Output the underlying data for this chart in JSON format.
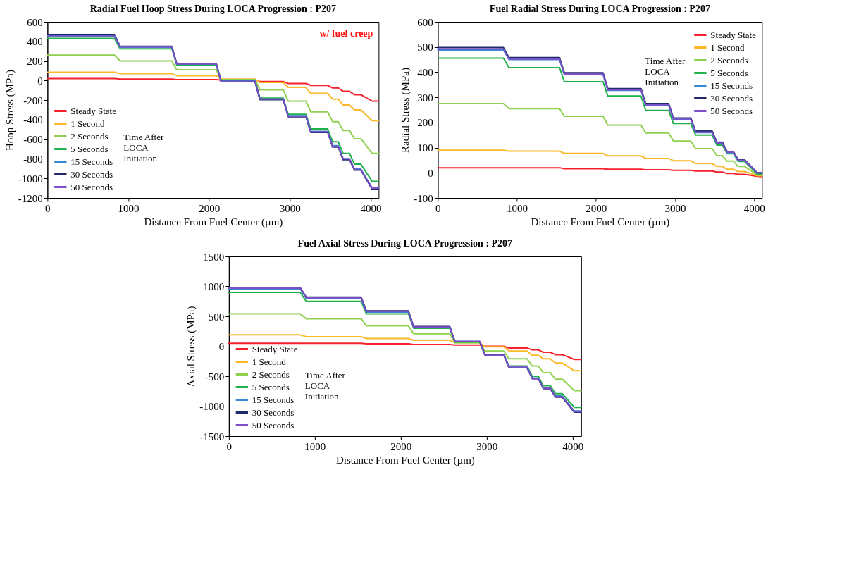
{
  "chart_data": [
    {
      "type": "line",
      "title": "Radial Fuel Hoop Stress During LOCA Progression  : P207",
      "xlabel": "Distance From Fuel Center (µm)",
      "ylabel": "Hoop Stress (MPa)",
      "legend_title": "Time After LOCA Initiation",
      "legend": "bottom left",
      "annotations": [
        "w/ fuel creep"
      ],
      "x": [
        0,
        830,
        900,
        1540,
        1600,
        2090,
        2150,
        2570,
        2630,
        2920,
        2980,
        3200,
        3260,
        3470,
        3530,
        3600,
        3660,
        3740,
        3800,
        3880,
        4020,
        4100
      ],
      "xlim": [
        0,
        4100
      ],
      "xticks": [
        0,
        1000,
        2000,
        3000,
        4000
      ],
      "ylim": [
        -1200,
        600
      ],
      "yticks": [
        -1200,
        -1000,
        -800,
        -600,
        -400,
        -200,
        0,
        200,
        400,
        600
      ],
      "series": [
        {
          "name": "Steady State",
          "color": "#f5222d",
          "values": [
            20,
            20,
            15,
            15,
            10,
            10,
            5,
            5,
            -10,
            -10,
            -30,
            -30,
            -50,
            -50,
            -75,
            -75,
            -110,
            -110,
            -145,
            -145,
            -210,
            -210
          ]
        },
        {
          "name": "1 Second",
          "color": "#fbb829",
          "values": [
            85,
            85,
            70,
            70,
            50,
            50,
            15,
            15,
            -20,
            -20,
            -70,
            -70,
            -130,
            -130,
            -190,
            -190,
            -250,
            -250,
            -300,
            -300,
            -410,
            -410
          ]
        },
        {
          "name": "2 Seconds",
          "color": "#8fd14f",
          "values": [
            260,
            260,
            200,
            200,
            110,
            110,
            10,
            10,
            -95,
            -95,
            -210,
            -210,
            -320,
            -320,
            -420,
            -420,
            -510,
            -510,
            -595,
            -595,
            -745,
            -745
          ]
        },
        {
          "name": "5 Seconds",
          "color": "#22b04a",
          "values": [
            430,
            430,
            325,
            325,
            160,
            160,
            0,
            0,
            -180,
            -180,
            -345,
            -345,
            -495,
            -495,
            -625,
            -625,
            -745,
            -745,
            -855,
            -855,
            -1030,
            -1030
          ]
        },
        {
          "name": "15 Seconds",
          "color": "#3a87d4",
          "values": [
            455,
            455,
            340,
            340,
            170,
            170,
            -5,
            -5,
            -190,
            -190,
            -360,
            -360,
            -520,
            -520,
            -665,
            -665,
            -800,
            -800,
            -905,
            -905,
            -1100,
            -1100
          ]
        },
        {
          "name": "30 Seconds",
          "color": "#1f2a6b",
          "values": [
            470,
            470,
            350,
            350,
            175,
            175,
            -10,
            -10,
            -195,
            -195,
            -370,
            -370,
            -530,
            -530,
            -680,
            -680,
            -810,
            -810,
            -915,
            -915,
            -1110,
            -1110
          ]
        },
        {
          "name": "50 Seconds",
          "color": "#7a4fc8",
          "values": [
            460,
            460,
            345,
            345,
            170,
            170,
            -10,
            -10,
            -190,
            -190,
            -365,
            -365,
            -525,
            -525,
            -675,
            -675,
            -800,
            -800,
            -910,
            -910,
            -1100,
            -1100
          ]
        }
      ]
    },
    {
      "type": "line",
      "title": "Fuel Radial Stress During LOCA Progression  : P207",
      "xlabel": "Distance From Fuel Center (µm)",
      "ylabel": "Radial Stress (MPa)",
      "legend_title": "Time After LOCA Initiation",
      "legend": "top right",
      "x": [
        0,
        830,
        900,
        1540,
        1600,
        2090,
        2150,
        2570,
        2630,
        2920,
        2980,
        3200,
        3260,
        3470,
        3530,
        3600,
        3660,
        3740,
        3800,
        3880,
        4040,
        4100
      ],
      "xlim": [
        0,
        4100
      ],
      "xticks": [
        0,
        1000,
        2000,
        3000,
        4000
      ],
      "ylim": [
        -100,
        600
      ],
      "yticks": [
        -100,
        0,
        100,
        200,
        300,
        400,
        500,
        600
      ],
      "series": [
        {
          "name": "Steady State",
          "color": "#f5222d",
          "values": [
            20,
            20,
            20,
            20,
            16,
            16,
            14,
            14,
            12,
            12,
            10,
            10,
            7,
            7,
            3,
            3,
            -3,
            -3,
            -6,
            -6,
            -14,
            -15
          ]
        },
        {
          "name": "1 Second",
          "color": "#fbb829",
          "values": [
            90,
            90,
            86,
            86,
            77,
            77,
            67,
            67,
            57,
            57,
            48,
            48,
            37,
            37,
            25,
            25,
            14,
            14,
            5,
            5,
            -12,
            -12
          ]
        },
        {
          "name": "2 Seconds",
          "color": "#8fd14f",
          "values": [
            275,
            275,
            255,
            255,
            225,
            225,
            190,
            190,
            158,
            158,
            126,
            126,
            96,
            96,
            68,
            68,
            46,
            46,
            25,
            25,
            -8,
            -8
          ]
        },
        {
          "name": "5 Seconds",
          "color": "#22b04a",
          "values": [
            456,
            456,
            418,
            418,
            362,
            362,
            305,
            305,
            248,
            248,
            196,
            196,
            150,
            150,
            110,
            110,
            76,
            76,
            45,
            45,
            -5,
            -5
          ]
        },
        {
          "name": "15 Seconds",
          "color": "#3a87d4",
          "values": [
            488,
            488,
            450,
            450,
            390,
            390,
            328,
            328,
            268,
            268,
            212,
            212,
            160,
            160,
            116,
            116,
            80,
            80,
            48,
            48,
            0,
            0
          ]
        },
        {
          "name": "30 Seconds",
          "color": "#1f2a6b",
          "values": [
            498,
            498,
            458,
            458,
            398,
            398,
            335,
            335,
            275,
            275,
            218,
            218,
            166,
            166,
            122,
            122,
            84,
            84,
            52,
            52,
            0,
            0
          ]
        },
        {
          "name": "50 Seconds",
          "color": "#7a4fc8",
          "values": [
            492,
            492,
            452,
            452,
            393,
            393,
            330,
            330,
            270,
            270,
            214,
            214,
            162,
            162,
            118,
            118,
            82,
            82,
            50,
            50,
            0,
            0
          ]
        }
      ]
    },
    {
      "type": "line",
      "title": "Fuel Axial Stress During LOCA Progression  : P207",
      "xlabel": "Distance From Fuel Center (µm)",
      "ylabel": "Axial Stress (MPa)",
      "legend_title": "Time After LOCA Initiation",
      "legend": "bottom left",
      "x": [
        0,
        830,
        900,
        1540,
        1600,
        2090,
        2150,
        2570,
        2630,
        2920,
        2980,
        3200,
        3260,
        3470,
        3530,
        3600,
        3660,
        3740,
        3800,
        3880,
        4020,
        4100
      ],
      "xlim": [
        0,
        4100
      ],
      "xticks": [
        0,
        1000,
        2000,
        3000,
        4000
      ],
      "ylim": [
        -1500,
        1500
      ],
      "yticks": [
        -1500,
        -1000,
        -500,
        0,
        500,
        1000,
        1500
      ],
      "series": [
        {
          "name": "Steady State",
          "color": "#f5222d",
          "values": [
            50,
            50,
            50,
            50,
            40,
            40,
            30,
            30,
            20,
            20,
            0,
            0,
            -30,
            -30,
            -60,
            -60,
            -100,
            -100,
            -140,
            -140,
            -220,
            -220
          ]
        },
        {
          "name": "1 Second",
          "color": "#fbb829",
          "values": [
            190,
            190,
            160,
            160,
            130,
            130,
            100,
            100,
            60,
            60,
            -10,
            -10,
            -80,
            -80,
            -150,
            -150,
            -210,
            -210,
            -280,
            -280,
            -410,
            -410
          ]
        },
        {
          "name": "2 Seconds",
          "color": "#8fd14f",
          "values": [
            540,
            540,
            460,
            460,
            340,
            340,
            210,
            210,
            60,
            60,
            -80,
            -80,
            -210,
            -210,
            -330,
            -330,
            -440,
            -440,
            -550,
            -550,
            -740,
            -740
          ]
        },
        {
          "name": "5 Seconds",
          "color": "#22b04a",
          "values": [
            900,
            900,
            750,
            750,
            540,
            540,
            300,
            300,
            70,
            70,
            -140,
            -140,
            -330,
            -330,
            -500,
            -500,
            -660,
            -660,
            -790,
            -790,
            -1020,
            -1020
          ]
        },
        {
          "name": "15 Seconds",
          "color": "#3a87d4",
          "values": [
            960,
            960,
            800,
            800,
            570,
            570,
            320,
            320,
            80,
            80,
            -140,
            -140,
            -350,
            -350,
            -530,
            -530,
            -700,
            -700,
            -830,
            -830,
            -1080,
            -1080
          ]
        },
        {
          "name": "30 Seconds",
          "color": "#1f2a6b",
          "values": [
            980,
            980,
            820,
            820,
            590,
            590,
            330,
            330,
            80,
            80,
            -150,
            -150,
            -360,
            -360,
            -540,
            -540,
            -710,
            -710,
            -850,
            -850,
            -1100,
            -1100
          ]
        },
        {
          "name": "50 Seconds",
          "color": "#7a4fc8",
          "values": [
            970,
            970,
            810,
            810,
            580,
            580,
            320,
            320,
            80,
            80,
            -150,
            -150,
            -350,
            -350,
            -540,
            -540,
            -700,
            -700,
            -840,
            -840,
            -1090,
            -1090
          ]
        }
      ]
    }
  ]
}
